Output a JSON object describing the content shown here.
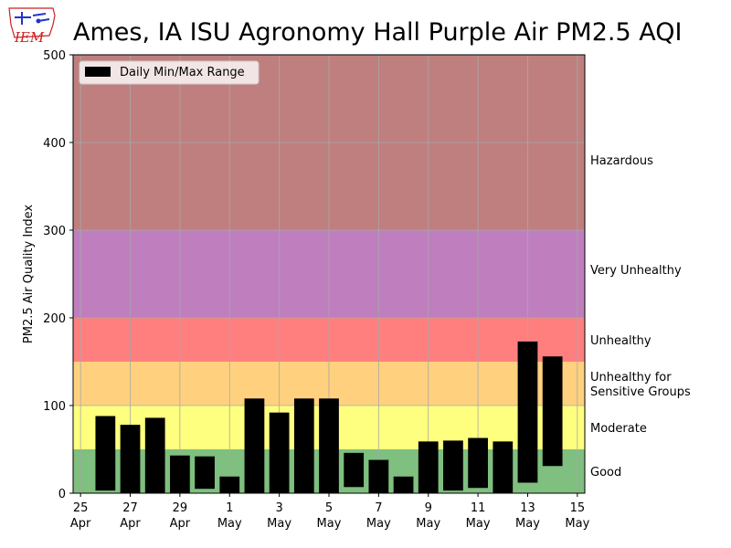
{
  "logo_text": "IEM",
  "chart_data": {
    "type": "bar",
    "title": "Ames, IA ISU Agronomy Hall Purple Air PM2.5 AQI",
    "ylabel": "PM2.5 Air Quality Index",
    "xlabel": "",
    "ylim": [
      0,
      500
    ],
    "yticks": [
      0,
      100,
      200,
      300,
      400,
      500
    ],
    "grid": true,
    "legend": {
      "placement": "top-left",
      "entries": [
        "Daily Min/Max Range"
      ]
    },
    "xticks": [
      {
        "day": 25,
        "line1": "25",
        "line2": "Apr"
      },
      {
        "day": 27,
        "line1": "27",
        "line2": "Apr"
      },
      {
        "day": 29,
        "line1": "29",
        "line2": "Apr"
      },
      {
        "day": 31,
        "line1": "1",
        "line2": "May"
      },
      {
        "day": 33,
        "line1": "3",
        "line2": "May"
      },
      {
        "day": 35,
        "line1": "5",
        "line2": "May"
      },
      {
        "day": 37,
        "line1": "7",
        "line2": "May"
      },
      {
        "day": 39,
        "line1": "9",
        "line2": "May"
      },
      {
        "day": 41,
        "line1": "11",
        "line2": "May"
      },
      {
        "day": 43,
        "line1": "13",
        "line2": "May"
      },
      {
        "day": 45,
        "line1": "15",
        "line2": "May"
      }
    ],
    "bands": [
      {
        "min": 0,
        "max": 50,
        "label": "Good",
        "color": "#7fbf7f"
      },
      {
        "min": 50,
        "max": 100,
        "label": "Moderate",
        "color": "#ffff7f"
      },
      {
        "min": 100,
        "max": 150,
        "label": "Unhealthy for Sensitive Groups",
        "color": "#ffd17f"
      },
      {
        "min": 150,
        "max": 200,
        "label": "Unhealthy",
        "color": "#ff7f7f"
      },
      {
        "min": 200,
        "max": 300,
        "label": "Very Unhealthy",
        "color": "#bf7fbf"
      },
      {
        "min": 300,
        "max": 500,
        "label": "Hazardous",
        "color": "#bf7f7f"
      }
    ],
    "band_labels": [
      {
        "lines": [
          "Good"
        ],
        "y": 25
      },
      {
        "lines": [
          "Moderate"
        ],
        "y": 75
      },
      {
        "lines": [
          "Unhealthy for",
          "Sensitive Groups"
        ],
        "y": 125
      },
      {
        "lines": [
          "Unhealthy"
        ],
        "y": 175
      },
      {
        "lines": [
          "Very Unhealthy"
        ],
        "y": 255
      },
      {
        "lines": [
          "Hazardous"
        ],
        "y": 380
      }
    ],
    "categories": [
      "Apr 26",
      "Apr 27",
      "Apr 28",
      "Apr 29",
      "Apr 30",
      "May 1",
      "May 2",
      "May 3",
      "May 4",
      "May 5",
      "May 6",
      "May 7",
      "May 8",
      "May 9",
      "May 10",
      "May 11",
      "May 12",
      "May 13",
      "May 14"
    ],
    "series": [
      {
        "name": "Daily Min/Max Range",
        "color": "#000000",
        "data": [
          {
            "date": "Apr 26",
            "min": 3,
            "max": 88
          },
          {
            "date": "Apr 27",
            "min": 0,
            "max": 78
          },
          {
            "date": "Apr 28",
            "min": 0,
            "max": 86
          },
          {
            "date": "Apr 29",
            "min": 0,
            "max": 43
          },
          {
            "date": "Apr 30",
            "min": 5,
            "max": 42
          },
          {
            "date": "May 1",
            "min": 0,
            "max": 19
          },
          {
            "date": "May 2",
            "min": 0,
            "max": 108
          },
          {
            "date": "May 3",
            "min": 0,
            "max": 92
          },
          {
            "date": "May 4",
            "min": 0,
            "max": 108
          },
          {
            "date": "May 5",
            "min": 0,
            "max": 108
          },
          {
            "date": "May 6",
            "min": 7,
            "max": 46
          },
          {
            "date": "May 7",
            "min": 0,
            "max": 38
          },
          {
            "date": "May 8",
            "min": 0,
            "max": 19
          },
          {
            "date": "May 9",
            "min": 0,
            "max": 59
          },
          {
            "date": "May 10",
            "min": 3,
            "max": 60
          },
          {
            "date": "May 11",
            "min": 6,
            "max": 63
          },
          {
            "date": "May 12",
            "min": 0,
            "max": 59
          },
          {
            "date": "May 13",
            "min": 12,
            "max": 173
          },
          {
            "date": "May 14",
            "min": 31,
            "max": 156
          }
        ]
      }
    ]
  }
}
